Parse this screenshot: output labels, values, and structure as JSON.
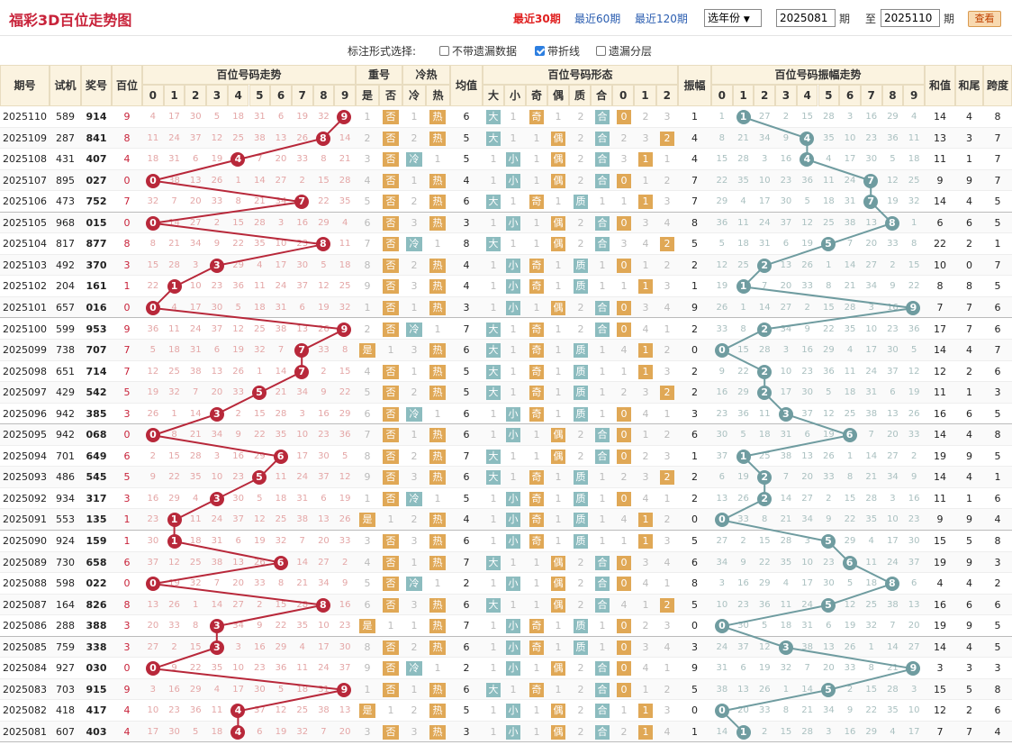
{
  "header": {
    "title": "福彩3D百位走势图",
    "periods": [
      "最近30期",
      "最近60期",
      "最近120期"
    ],
    "year_select": "选年份",
    "from": "2025081",
    "qi1": "期",
    "to_label": "至",
    "to": "2025110",
    "qi2": "期",
    "query": "查看"
  },
  "options": {
    "label": "标注形式选择:",
    "opt1": "不带遗漏数据",
    "opt2": "带折线",
    "opt3": "遗漏分层"
  },
  "columns": {
    "issue": "期号",
    "test": "试机",
    "prize": "奖号",
    "hund": "百位",
    "trend": "百位号码走势",
    "rep": "重号",
    "rep_yes": "是",
    "rep_no": "否",
    "hc": "冷热",
    "cold": "冷",
    "hot": "热",
    "avg": "均值",
    "form": "百位号码形态",
    "big": "大",
    "small": "小",
    "odd": "奇",
    "even": "偶",
    "prime": "质",
    "comp": "合",
    "amp": "振幅",
    "ampt": "百位号码振幅走势",
    "sum": "和值",
    "tail": "和尾",
    "span": "跨度",
    "digits": [
      "0",
      "1",
      "2",
      "3",
      "4",
      "5",
      "6",
      "7",
      "8",
      "9"
    ]
  },
  "colors": {
    "title": "#c8233a",
    "red": "#b8283a",
    "teal": "#6f9ca0",
    "orange": "#e0a856"
  },
  "rows": [
    {
      "issue": "2025110",
      "test": "589",
      "prize": "914",
      "h": 9,
      "amp": 1,
      "sum": 14,
      "tail": 4,
      "span": 8
    },
    {
      "issue": "2025109",
      "test": "287",
      "prize": "841",
      "h": 8,
      "amp": 4,
      "sum": 13,
      "tail": 3,
      "span": 7
    },
    {
      "issue": "2025108",
      "test": "431",
      "prize": "407",
      "h": 4,
      "amp": 4,
      "sum": 11,
      "tail": 1,
      "span": 7
    },
    {
      "issue": "2025107",
      "test": "895",
      "prize": "027",
      "h": 0,
      "amp": 7,
      "sum": 9,
      "tail": 9,
      "span": 7
    },
    {
      "issue": "2025106",
      "test": "473",
      "prize": "752",
      "h": 7,
      "amp": 7,
      "sum": 14,
      "tail": 4,
      "span": 5
    },
    {
      "issue": "2025105",
      "test": "968",
      "prize": "015",
      "h": 0,
      "amp": 8,
      "sum": 6,
      "tail": 6,
      "span": 5
    },
    {
      "issue": "2025104",
      "test": "817",
      "prize": "877",
      "h": 8,
      "amp": 5,
      "sum": 22,
      "tail": 2,
      "span": 1
    },
    {
      "issue": "2025103",
      "test": "492",
      "prize": "370",
      "h": 3,
      "amp": 2,
      "sum": 10,
      "tail": 0,
      "span": 7
    },
    {
      "issue": "2025102",
      "test": "204",
      "prize": "161",
      "h": 1,
      "amp": 1,
      "sum": 8,
      "tail": 8,
      "span": 5
    },
    {
      "issue": "2025101",
      "test": "657",
      "prize": "016",
      "h": 0,
      "amp": 9,
      "sum": 7,
      "tail": 7,
      "span": 6
    },
    {
      "issue": "2025100",
      "test": "599",
      "prize": "953",
      "h": 9,
      "amp": 2,
      "sum": 17,
      "tail": 7,
      "span": 6
    },
    {
      "issue": "2025099",
      "test": "738",
      "prize": "707",
      "h": 7,
      "amp": 0,
      "sum": 14,
      "tail": 4,
      "span": 7
    },
    {
      "issue": "2025098",
      "test": "651",
      "prize": "714",
      "h": 7,
      "amp": 2,
      "sum": 12,
      "tail": 2,
      "span": 6
    },
    {
      "issue": "2025097",
      "test": "429",
      "prize": "542",
      "h": 5,
      "amp": 2,
      "sum": 11,
      "tail": 1,
      "span": 3
    },
    {
      "issue": "2025096",
      "test": "942",
      "prize": "385",
      "h": 3,
      "amp": 3,
      "sum": 16,
      "tail": 6,
      "span": 5
    },
    {
      "issue": "2025095",
      "test": "942",
      "prize": "068",
      "h": 0,
      "amp": 6,
      "sum": 14,
      "tail": 4,
      "span": 8
    },
    {
      "issue": "2025094",
      "test": "701",
      "prize": "649",
      "h": 6,
      "amp": 1,
      "sum": 19,
      "tail": 9,
      "span": 5
    },
    {
      "issue": "2025093",
      "test": "486",
      "prize": "545",
      "h": 5,
      "amp": 2,
      "sum": 14,
      "tail": 4,
      "span": 1
    },
    {
      "issue": "2025092",
      "test": "934",
      "prize": "317",
      "h": 3,
      "amp": 2,
      "sum": 11,
      "tail": 1,
      "span": 6
    },
    {
      "issue": "2025091",
      "test": "553",
      "prize": "135",
      "h": 1,
      "amp": 0,
      "sum": 9,
      "tail": 9,
      "span": 4
    },
    {
      "issue": "2025090",
      "test": "924",
      "prize": "159",
      "h": 1,
      "amp": 5,
      "sum": 15,
      "tail": 5,
      "span": 8
    },
    {
      "issue": "2025089",
      "test": "730",
      "prize": "658",
      "h": 6,
      "amp": 6,
      "sum": 19,
      "tail": 9,
      "span": 3
    },
    {
      "issue": "2025088",
      "test": "598",
      "prize": "022",
      "h": 0,
      "amp": 8,
      "sum": 4,
      "tail": 4,
      "span": 2
    },
    {
      "issue": "2025087",
      "test": "164",
      "prize": "826",
      "h": 8,
      "amp": 5,
      "sum": 16,
      "tail": 6,
      "span": 6
    },
    {
      "issue": "2025086",
      "test": "288",
      "prize": "388",
      "h": 3,
      "amp": 0,
      "sum": 19,
      "tail": 9,
      "span": 5
    },
    {
      "issue": "2025085",
      "test": "759",
      "prize": "338",
      "h": 3,
      "amp": 3,
      "sum": 14,
      "tail": 4,
      "span": 5
    },
    {
      "issue": "2025084",
      "test": "927",
      "prize": "030",
      "h": 0,
      "amp": 9,
      "sum": 3,
      "tail": 3,
      "span": 3
    },
    {
      "issue": "2025083",
      "test": "703",
      "prize": "915",
      "h": 9,
      "amp": 5,
      "sum": 15,
      "tail": 5,
      "span": 8
    },
    {
      "issue": "2025082",
      "test": "418",
      "prize": "417",
      "h": 4,
      "amp": 0,
      "sum": 12,
      "tail": 2,
      "span": 6
    },
    {
      "issue": "2025081",
      "test": "607",
      "prize": "403",
      "h": 4,
      "amp": 1,
      "sum": 7,
      "tail": 7,
      "span": 4
    }
  ]
}
